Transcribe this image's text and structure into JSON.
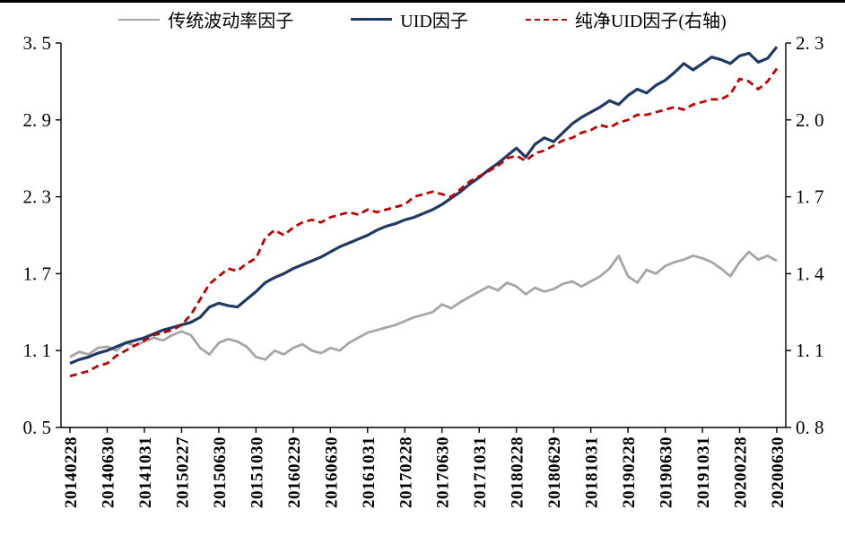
{
  "chart_data": {
    "type": "line",
    "title": "",
    "legend_position": "top",
    "grid": false,
    "left_axis": {
      "min": 0.5,
      "max": 3.5,
      "ticks": [
        {
          "v": 0.5,
          "label": "0. 5"
        },
        {
          "v": 1.1,
          "label": "1. 1"
        },
        {
          "v": 1.7,
          "label": "1. 7"
        },
        {
          "v": 2.3,
          "label": "2. 3"
        },
        {
          "v": 2.9,
          "label": "2. 9"
        },
        {
          "v": 3.5,
          "label": "3. 5"
        }
      ]
    },
    "right_axis": {
      "min": 0.8,
      "max": 2.3,
      "ticks": [
        {
          "v": 0.8,
          "label": "0. 8"
        },
        {
          "v": 1.1,
          "label": "1. 1"
        },
        {
          "v": 1.4,
          "label": "1. 4"
        },
        {
          "v": 1.7,
          "label": "1. 7"
        },
        {
          "v": 2.0,
          "label": "2. 0"
        },
        {
          "v": 2.3,
          "label": "2. 3"
        }
      ]
    },
    "x_ticks": [
      {
        "i": 0,
        "label": "20140228"
      },
      {
        "i": 4,
        "label": "20140630"
      },
      {
        "i": 8,
        "label": "20141031"
      },
      {
        "i": 12,
        "label": "20150227"
      },
      {
        "i": 16,
        "label": "20150630"
      },
      {
        "i": 20,
        "label": "20151030"
      },
      {
        "i": 24,
        "label": "20160229"
      },
      {
        "i": 28,
        "label": "20160630"
      },
      {
        "i": 32,
        "label": "20161031"
      },
      {
        "i": 36,
        "label": "20170228"
      },
      {
        "i": 40,
        "label": "20170630"
      },
      {
        "i": 44,
        "label": "20171031"
      },
      {
        "i": 48,
        "label": "20180228"
      },
      {
        "i": 52,
        "label": "20180629"
      },
      {
        "i": 56,
        "label": "20181031"
      },
      {
        "i": 60,
        "label": "20190228"
      },
      {
        "i": 64,
        "label": "20190630"
      },
      {
        "i": 68,
        "label": "20191031"
      },
      {
        "i": 72,
        "label": "20200228"
      },
      {
        "i": 76,
        "label": "20200630"
      }
    ],
    "series": [
      {
        "name": "传统波动率因子",
        "axis": "left",
        "color": "#a6a6a6",
        "style": "solid",
        "width": 2.8,
        "values": [
          1.05,
          1.09,
          1.07,
          1.12,
          1.13,
          1.1,
          1.16,
          1.14,
          1.17,
          1.2,
          1.18,
          1.22,
          1.25,
          1.22,
          1.12,
          1.07,
          1.16,
          1.19,
          1.17,
          1.13,
          1.05,
          1.03,
          1.1,
          1.07,
          1.12,
          1.15,
          1.1,
          1.08,
          1.12,
          1.1,
          1.16,
          1.2,
          1.24,
          1.26,
          1.28,
          1.3,
          1.33,
          1.36,
          1.38,
          1.4,
          1.46,
          1.43,
          1.48,
          1.52,
          1.56,
          1.6,
          1.57,
          1.63,
          1.6,
          1.54,
          1.59,
          1.56,
          1.58,
          1.62,
          1.64,
          1.6,
          1.64,
          1.68,
          1.74,
          1.84,
          1.68,
          1.63,
          1.73,
          1.7,
          1.76,
          1.79,
          1.81,
          1.84,
          1.82,
          1.79,
          1.74,
          1.68,
          1.79,
          1.87,
          1.81,
          1.84,
          1.8
        ]
      },
      {
        "name": "UID因子",
        "axis": "left",
        "color": "#1f3864",
        "style": "solid",
        "width": 3.2,
        "values": [
          1.0,
          1.03,
          1.05,
          1.08,
          1.1,
          1.13,
          1.16,
          1.18,
          1.2,
          1.23,
          1.26,
          1.28,
          1.3,
          1.32,
          1.36,
          1.44,
          1.47,
          1.45,
          1.44,
          1.5,
          1.56,
          1.63,
          1.67,
          1.7,
          1.74,
          1.77,
          1.8,
          1.83,
          1.87,
          1.91,
          1.94,
          1.97,
          2.0,
          2.04,
          2.07,
          2.09,
          2.12,
          2.14,
          2.17,
          2.2,
          2.24,
          2.29,
          2.34,
          2.4,
          2.45,
          2.51,
          2.56,
          2.62,
          2.68,
          2.61,
          2.71,
          2.76,
          2.73,
          2.8,
          2.87,
          2.92,
          2.96,
          3.0,
          3.05,
          3.02,
          3.09,
          3.14,
          3.11,
          3.17,
          3.21,
          3.27,
          3.34,
          3.29,
          3.34,
          3.39,
          3.37,
          3.34,
          3.4,
          3.42,
          3.35,
          3.38,
          3.47
        ]
      },
      {
        "name": "纯净UID因子(右轴)",
        "axis": "right",
        "color": "#c00000",
        "style": "dashed",
        "width": 2.8,
        "values": [
          1.0,
          1.01,
          1.02,
          1.04,
          1.05,
          1.08,
          1.1,
          1.12,
          1.14,
          1.16,
          1.17,
          1.18,
          1.2,
          1.24,
          1.3,
          1.36,
          1.39,
          1.42,
          1.41,
          1.44,
          1.46,
          1.54,
          1.57,
          1.55,
          1.58,
          1.6,
          1.61,
          1.6,
          1.62,
          1.63,
          1.64,
          1.63,
          1.65,
          1.64,
          1.65,
          1.66,
          1.67,
          1.7,
          1.71,
          1.72,
          1.71,
          1.7,
          1.73,
          1.76,
          1.78,
          1.8,
          1.82,
          1.85,
          1.86,
          1.84,
          1.87,
          1.88,
          1.9,
          1.92,
          1.93,
          1.95,
          1.96,
          1.98,
          1.97,
          1.99,
          2.0,
          2.02,
          2.02,
          2.03,
          2.04,
          2.05,
          2.04,
          2.06,
          2.07,
          2.08,
          2.08,
          2.1,
          2.16,
          2.15,
          2.12,
          2.15,
          2.2
        ]
      }
    ]
  }
}
